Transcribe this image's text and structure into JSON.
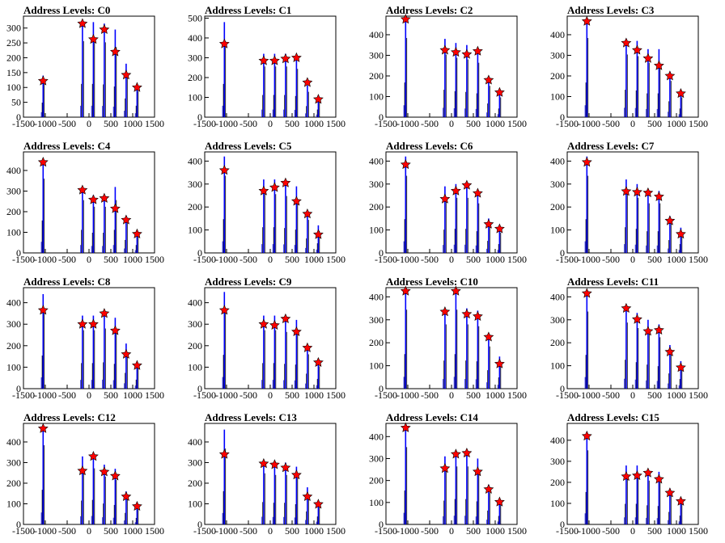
{
  "figure": {
    "description_visible": "4x4 grid of histogram panels",
    "colors": {
      "histogram": "#0000ff",
      "peak_marker": "#ff0000",
      "marker_outline": "#000000",
      "axes": "#000000"
    }
  },
  "chart_data": [
    {
      "type": "histogram",
      "title": "Address Levels: C0",
      "xlim": [
        -1500,
        1500
      ],
      "ylim": [
        0,
        340
      ],
      "yticks": [
        0,
        50,
        100,
        150,
        200,
        250,
        300
      ],
      "xticks": [
        -1500,
        -1000,
        -500,
        0,
        500,
        1000,
        1500
      ],
      "xtick_labels": [
        "-1500",
        "-1000",
        "-500",
        "0",
        "500",
        "1000",
        "1500"
      ],
      "peaks": [
        {
          "x": -1050,
          "height": 140,
          "marker_y": 122
        },
        {
          "x": -150,
          "height": 320,
          "marker_y": 315
        },
        {
          "x": 100,
          "height": 320,
          "marker_y": 262
        },
        {
          "x": 350,
          "height": 315,
          "marker_y": 295
        },
        {
          "x": 600,
          "height": 295,
          "marker_y": 220
        },
        {
          "x": 850,
          "height": 180,
          "marker_y": 142
        },
        {
          "x": 1100,
          "height": 110,
          "marker_y": 100
        }
      ]
    },
    {
      "type": "histogram",
      "title": "Address Levels: C1",
      "xlim": [
        -1500,
        1500
      ],
      "ylim": [
        0,
        510
      ],
      "yticks": [
        0,
        100,
        200,
        300,
        400,
        500
      ],
      "xticks": [
        -1500,
        -1000,
        -500,
        0,
        500,
        1000,
        1500
      ],
      "xtick_labels": [
        "-1500",
        "-1000",
        "-500",
        "0",
        "500",
        "1000",
        "1500"
      ],
      "peaks": [
        {
          "x": -1050,
          "height": 480,
          "marker_y": 370
        },
        {
          "x": -150,
          "height": 320,
          "marker_y": 285
        },
        {
          "x": 100,
          "height": 320,
          "marker_y": 285
        },
        {
          "x": 350,
          "height": 320,
          "marker_y": 295
        },
        {
          "x": 600,
          "height": 305,
          "marker_y": 300
        },
        {
          "x": 850,
          "height": 160,
          "marker_y": 175
        },
        {
          "x": 1100,
          "height": 110,
          "marker_y": 90
        }
      ]
    },
    {
      "type": "histogram",
      "title": "Address Levels: C2",
      "xlim": [
        -1500,
        1500
      ],
      "ylim": [
        0,
        490
      ],
      "yticks": [
        0,
        100,
        200,
        300,
        400
      ],
      "xticks": [
        -1500,
        -1000,
        -500,
        0,
        500,
        1000,
        1500
      ],
      "xtick_labels": [
        "-1500",
        "-1000",
        "-500",
        "0",
        "500",
        "1000",
        "1500"
      ],
      "peaks": [
        {
          "x": -1050,
          "height": 480,
          "marker_y": 475
        },
        {
          "x": -150,
          "height": 380,
          "marker_y": 325
        },
        {
          "x": 100,
          "height": 360,
          "marker_y": 315
        },
        {
          "x": 350,
          "height": 350,
          "marker_y": 305
        },
        {
          "x": 600,
          "height": 330,
          "marker_y": 320
        },
        {
          "x": 850,
          "height": 190,
          "marker_y": 180
        },
        {
          "x": 1100,
          "height": 120,
          "marker_y": 120
        }
      ]
    },
    {
      "type": "histogram",
      "title": "Address Levels: C3",
      "xlim": [
        -1500,
        1500
      ],
      "ylim": [
        0,
        490
      ],
      "yticks": [
        0,
        100,
        200,
        300,
        400
      ],
      "xticks": [
        -1500,
        -1000,
        -500,
        0,
        500,
        1000,
        1500
      ],
      "xtick_labels": [
        "-1500",
        "-1000",
        "-500",
        "0",
        "500",
        "1000",
        "1500"
      ],
      "peaks": [
        {
          "x": -1050,
          "height": 480,
          "marker_y": 465
        },
        {
          "x": -150,
          "height": 380,
          "marker_y": 360
        },
        {
          "x": 100,
          "height": 370,
          "marker_y": 325
        },
        {
          "x": 350,
          "height": 330,
          "marker_y": 285
        },
        {
          "x": 600,
          "height": 330,
          "marker_y": 250
        },
        {
          "x": 850,
          "height": 220,
          "marker_y": 200
        },
        {
          "x": 1100,
          "height": 120,
          "marker_y": 115
        }
      ]
    },
    {
      "type": "histogram",
      "title": "Address Levels: C4",
      "xlim": [
        -1500,
        1500
      ],
      "ylim": [
        0,
        490
      ],
      "yticks": [
        0,
        100,
        200,
        300,
        400
      ],
      "xticks": [
        -1500,
        -1000,
        -500,
        0,
        500,
        1000,
        1500
      ],
      "xtick_labels": [
        "-1500",
        "-1000",
        "-500",
        "0",
        "500",
        "1000",
        "1500"
      ],
      "peaks": [
        {
          "x": -1050,
          "height": 450,
          "marker_y": 440
        },
        {
          "x": -150,
          "height": 320,
          "marker_y": 305
        },
        {
          "x": 100,
          "height": 280,
          "marker_y": 258
        },
        {
          "x": 350,
          "height": 280,
          "marker_y": 265
        },
        {
          "x": 600,
          "height": 320,
          "marker_y": 215
        },
        {
          "x": 850,
          "height": 180,
          "marker_y": 160
        },
        {
          "x": 1100,
          "height": 110,
          "marker_y": 92
        }
      ]
    },
    {
      "type": "histogram",
      "title": "Address Levels: C5",
      "xlim": [
        -1500,
        1500
      ],
      "ylim": [
        0,
        440
      ],
      "yticks": [
        0,
        100,
        200,
        300,
        400
      ],
      "xticks": [
        -1500,
        -1000,
        -500,
        0,
        500,
        1000,
        1500
      ],
      "xtick_labels": [
        "-1500",
        "-1000",
        "-500",
        "0",
        "500",
        "1000",
        "1500"
      ],
      "peaks": [
        {
          "x": -1050,
          "height": 420,
          "marker_y": 360
        },
        {
          "x": -150,
          "height": 320,
          "marker_y": 270
        },
        {
          "x": 100,
          "height": 320,
          "marker_y": 285
        },
        {
          "x": 350,
          "height": 310,
          "marker_y": 305
        },
        {
          "x": 600,
          "height": 290,
          "marker_y": 225
        },
        {
          "x": 850,
          "height": 180,
          "marker_y": 170
        },
        {
          "x": 1100,
          "height": 120,
          "marker_y": 80
        }
      ]
    },
    {
      "type": "histogram",
      "title": "Address Levels: C6",
      "xlim": [
        -1500,
        1500
      ],
      "ylim": [
        0,
        440
      ],
      "yticks": [
        0,
        100,
        200,
        300,
        400
      ],
      "xticks": [
        -1500,
        -1000,
        -500,
        0,
        500,
        1000,
        1500
      ],
      "xtick_labels": [
        "-1500",
        "-1000",
        "-500",
        "0",
        "500",
        "1000",
        "1500"
      ],
      "peaks": [
        {
          "x": -1050,
          "height": 420,
          "marker_y": 385
        },
        {
          "x": -150,
          "height": 290,
          "marker_y": 235
        },
        {
          "x": 100,
          "height": 300,
          "marker_y": 270
        },
        {
          "x": 350,
          "height": 300,
          "marker_y": 295
        },
        {
          "x": 600,
          "height": 270,
          "marker_y": 260
        },
        {
          "x": 850,
          "height": 150,
          "marker_y": 125
        },
        {
          "x": 1100,
          "height": 110,
          "marker_y": 105
        }
      ]
    },
    {
      "type": "histogram",
      "title": "Address Levels: C7",
      "xlim": [
        -1500,
        1500
      ],
      "ylim": [
        0,
        440
      ],
      "yticks": [
        0,
        100,
        200,
        300,
        400
      ],
      "xticks": [
        -1500,
        -1000,
        -500,
        0,
        500,
        1000,
        1500
      ],
      "xtick_labels": [
        "-1500",
        "-1000",
        "-500",
        "0",
        "500",
        "1000",
        "1500"
      ],
      "peaks": [
        {
          "x": -1050,
          "height": 420,
          "marker_y": 395
        },
        {
          "x": -150,
          "height": 320,
          "marker_y": 268
        },
        {
          "x": 100,
          "height": 300,
          "marker_y": 265
        },
        {
          "x": 350,
          "height": 270,
          "marker_y": 262
        },
        {
          "x": 600,
          "height": 270,
          "marker_y": 245
        },
        {
          "x": 850,
          "height": 160,
          "marker_y": 140
        },
        {
          "x": 1100,
          "height": 110,
          "marker_y": 82
        }
      ]
    },
    {
      "type": "histogram",
      "title": "Address Levels: C8",
      "xlim": [
        -1500,
        1500
      ],
      "ylim": [
        0,
        470
      ],
      "yticks": [
        0,
        100,
        200,
        300,
        400
      ],
      "xticks": [
        -1500,
        -1000,
        -500,
        0,
        500,
        1000,
        1500
      ],
      "xtick_labels": [
        "-1500",
        "-1000",
        "-500",
        "0",
        "500",
        "1000",
        "1500"
      ],
      "peaks": [
        {
          "x": -1050,
          "height": 440,
          "marker_y": 365
        },
        {
          "x": -150,
          "height": 340,
          "marker_y": 300
        },
        {
          "x": 100,
          "height": 340,
          "marker_y": 300
        },
        {
          "x": 350,
          "height": 350,
          "marker_y": 350
        },
        {
          "x": 600,
          "height": 330,
          "marker_y": 270
        },
        {
          "x": 850,
          "height": 210,
          "marker_y": 160
        },
        {
          "x": 1100,
          "height": 120,
          "marker_y": 108
        }
      ]
    },
    {
      "type": "histogram",
      "title": "Address Levels: C9",
      "xlim": [
        -1500,
        1500
      ],
      "ylim": [
        0,
        470
      ],
      "yticks": [
        0,
        100,
        200,
        300,
        400
      ],
      "xticks": [
        -1500,
        -1000,
        -500,
        0,
        500,
        1000,
        1500
      ],
      "xtick_labels": [
        "-1500",
        "-1000",
        "-500",
        "0",
        "500",
        "1000",
        "1500"
      ],
      "peaks": [
        {
          "x": -1050,
          "height": 450,
          "marker_y": 365
        },
        {
          "x": -150,
          "height": 340,
          "marker_y": 300
        },
        {
          "x": 100,
          "height": 340,
          "marker_y": 295
        },
        {
          "x": 350,
          "height": 330,
          "marker_y": 325
        },
        {
          "x": 600,
          "height": 320,
          "marker_y": 265
        },
        {
          "x": 850,
          "height": 200,
          "marker_y": 190
        },
        {
          "x": 1100,
          "height": 130,
          "marker_y": 122
        }
      ]
    },
    {
      "type": "histogram",
      "title": "Address Levels: C10",
      "xlim": [
        -1500,
        1500
      ],
      "ylim": [
        0,
        440
      ],
      "yticks": [
        0,
        100,
        200,
        300,
        400
      ],
      "xticks": [
        -1500,
        -1000,
        -500,
        0,
        500,
        1000,
        1500
      ],
      "xtick_labels": [
        "-1500",
        "-1000",
        "-500",
        "0",
        "500",
        "1000",
        "1500"
      ],
      "peaks": [
        {
          "x": -1050,
          "height": 430,
          "marker_y": 425
        },
        {
          "x": -150,
          "height": 350,
          "marker_y": 335
        },
        {
          "x": 100,
          "height": 430,
          "marker_y": 425
        },
        {
          "x": 350,
          "height": 350,
          "marker_y": 325
        },
        {
          "x": 600,
          "height": 340,
          "marker_y": 315
        },
        {
          "x": 850,
          "height": 230,
          "marker_y": 225
        },
        {
          "x": 1100,
          "height": 140,
          "marker_y": 108
        }
      ]
    },
    {
      "type": "histogram",
      "title": "Address Levels: C11",
      "xlim": [
        -1500,
        1500
      ],
      "ylim": [
        0,
        440
      ],
      "yticks": [
        0,
        100,
        200,
        300,
        400
      ],
      "xticks": [
        -1500,
        -1000,
        -500,
        0,
        500,
        1000,
        1500
      ],
      "xtick_labels": [
        "-1500",
        "-1000",
        "-500",
        "0",
        "500",
        "1000",
        "1500"
      ],
      "peaks": [
        {
          "x": -1050,
          "height": 420,
          "marker_y": 415
        },
        {
          "x": -150,
          "height": 360,
          "marker_y": 350
        },
        {
          "x": 100,
          "height": 330,
          "marker_y": 302
        },
        {
          "x": 350,
          "height": 300,
          "marker_y": 250
        },
        {
          "x": 600,
          "height": 280,
          "marker_y": 255
        },
        {
          "x": 850,
          "height": 190,
          "marker_y": 160
        },
        {
          "x": 1100,
          "height": 120,
          "marker_y": 92
        }
      ]
    },
    {
      "type": "histogram",
      "title": "Address Levels: C12",
      "xlim": [
        -1500,
        1500
      ],
      "ylim": [
        0,
        490
      ],
      "yticks": [
        0,
        100,
        200,
        300,
        400
      ],
      "xticks": [
        -1500,
        -1000,
        -500,
        0,
        500,
        1000,
        1500
      ],
      "xtick_labels": [
        "-1500",
        "-1000",
        "-500",
        "0",
        "500",
        "1000",
        "1500"
      ],
      "peaks": [
        {
          "x": -1050,
          "height": 480,
          "marker_y": 465
        },
        {
          "x": -150,
          "height": 330,
          "marker_y": 260
        },
        {
          "x": 100,
          "height": 340,
          "marker_y": 330
        },
        {
          "x": 350,
          "height": 290,
          "marker_y": 255
        },
        {
          "x": 600,
          "height": 270,
          "marker_y": 235
        },
        {
          "x": 850,
          "height": 160,
          "marker_y": 135
        },
        {
          "x": 1100,
          "height": 90,
          "marker_y": 88
        }
      ]
    },
    {
      "type": "histogram",
      "title": "Address Levels: C13",
      "xlim": [
        -1500,
        1500
      ],
      "ylim": [
        0,
        490
      ],
      "yticks": [
        0,
        100,
        200,
        300,
        400
      ],
      "xticks": [
        -1500,
        -1000,
        -500,
        0,
        500,
        1000,
        1500
      ],
      "xtick_labels": [
        "-1500",
        "-1000",
        "-500",
        "0",
        "500",
        "1000",
        "1500"
      ],
      "peaks": [
        {
          "x": -1050,
          "height": 460,
          "marker_y": 340
        },
        {
          "x": -150,
          "height": 310,
          "marker_y": 295
        },
        {
          "x": 100,
          "height": 300,
          "marker_y": 290
        },
        {
          "x": 350,
          "height": 300,
          "marker_y": 275
        },
        {
          "x": 600,
          "height": 280,
          "marker_y": 240
        },
        {
          "x": 850,
          "height": 180,
          "marker_y": 135
        },
        {
          "x": 1100,
          "height": 110,
          "marker_y": 98
        }
      ]
    },
    {
      "type": "histogram",
      "title": "Address Levels: C14",
      "xlim": [
        -1500,
        1500
      ],
      "ylim": [
        0,
        460
      ],
      "yticks": [
        0,
        100,
        200,
        300,
        400
      ],
      "xticks": [
        -1500,
        -1000,
        -500,
        0,
        500,
        1000,
        1500
      ],
      "xtick_labels": [
        "-1500",
        "-1000",
        "-500",
        "0",
        "500",
        "1000",
        "1500"
      ],
      "peaks": [
        {
          "x": -1050,
          "height": 440,
          "marker_y": 440
        },
        {
          "x": -150,
          "height": 310,
          "marker_y": 255
        },
        {
          "x": 100,
          "height": 330,
          "marker_y": 320
        },
        {
          "x": 350,
          "height": 330,
          "marker_y": 325
        },
        {
          "x": 600,
          "height": 300,
          "marker_y": 240
        },
        {
          "x": 850,
          "height": 180,
          "marker_y": 160
        },
        {
          "x": 1100,
          "height": 110,
          "marker_y": 102
        }
      ]
    },
    {
      "type": "histogram",
      "title": "Address Levels: C15",
      "xlim": [
        -1500,
        1500
      ],
      "ylim": [
        0,
        480
      ],
      "yticks": [
        0,
        100,
        200,
        300,
        400
      ],
      "xticks": [
        -1500,
        -1000,
        -500,
        0,
        500,
        1000,
        1500
      ],
      "xtick_labels": [
        "-1500",
        "-1000",
        "-500",
        "0",
        "500",
        "1000",
        "1500"
      ],
      "peaks": [
        {
          "x": -1050,
          "height": 440,
          "marker_y": 420
        },
        {
          "x": -150,
          "height": 280,
          "marker_y": 228
        },
        {
          "x": 100,
          "height": 280,
          "marker_y": 232
        },
        {
          "x": 350,
          "height": 260,
          "marker_y": 245
        },
        {
          "x": 600,
          "height": 250,
          "marker_y": 215
        },
        {
          "x": 850,
          "height": 170,
          "marker_y": 150
        },
        {
          "x": 1100,
          "height": 120,
          "marker_y": 110
        }
      ]
    }
  ]
}
